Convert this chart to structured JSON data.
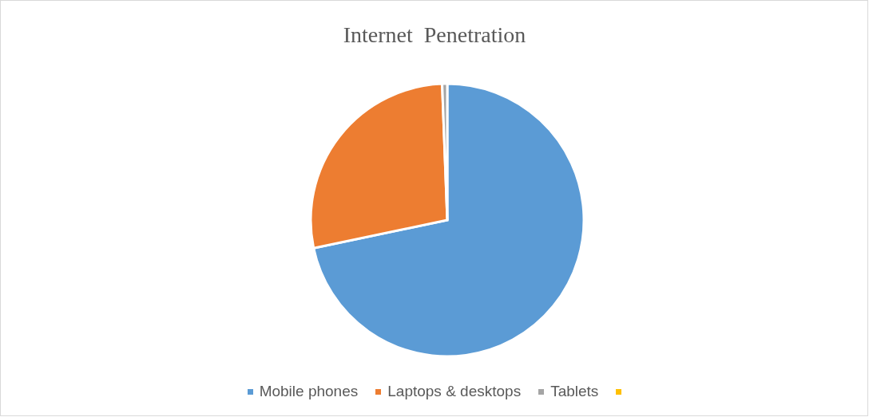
{
  "chart_data": {
    "type": "pie",
    "title": "Internet  Penetration",
    "categories": [
      "Mobile phones",
      "Laptops & desktops",
      "Tablets",
      null
    ],
    "values": [
      71.7,
      27.7,
      0.6,
      0
    ],
    "colors": [
      "#5b9bd5",
      "#ed7d31",
      "#a5a5a5",
      "#ffc000"
    ],
    "legend": "bottom"
  }
}
